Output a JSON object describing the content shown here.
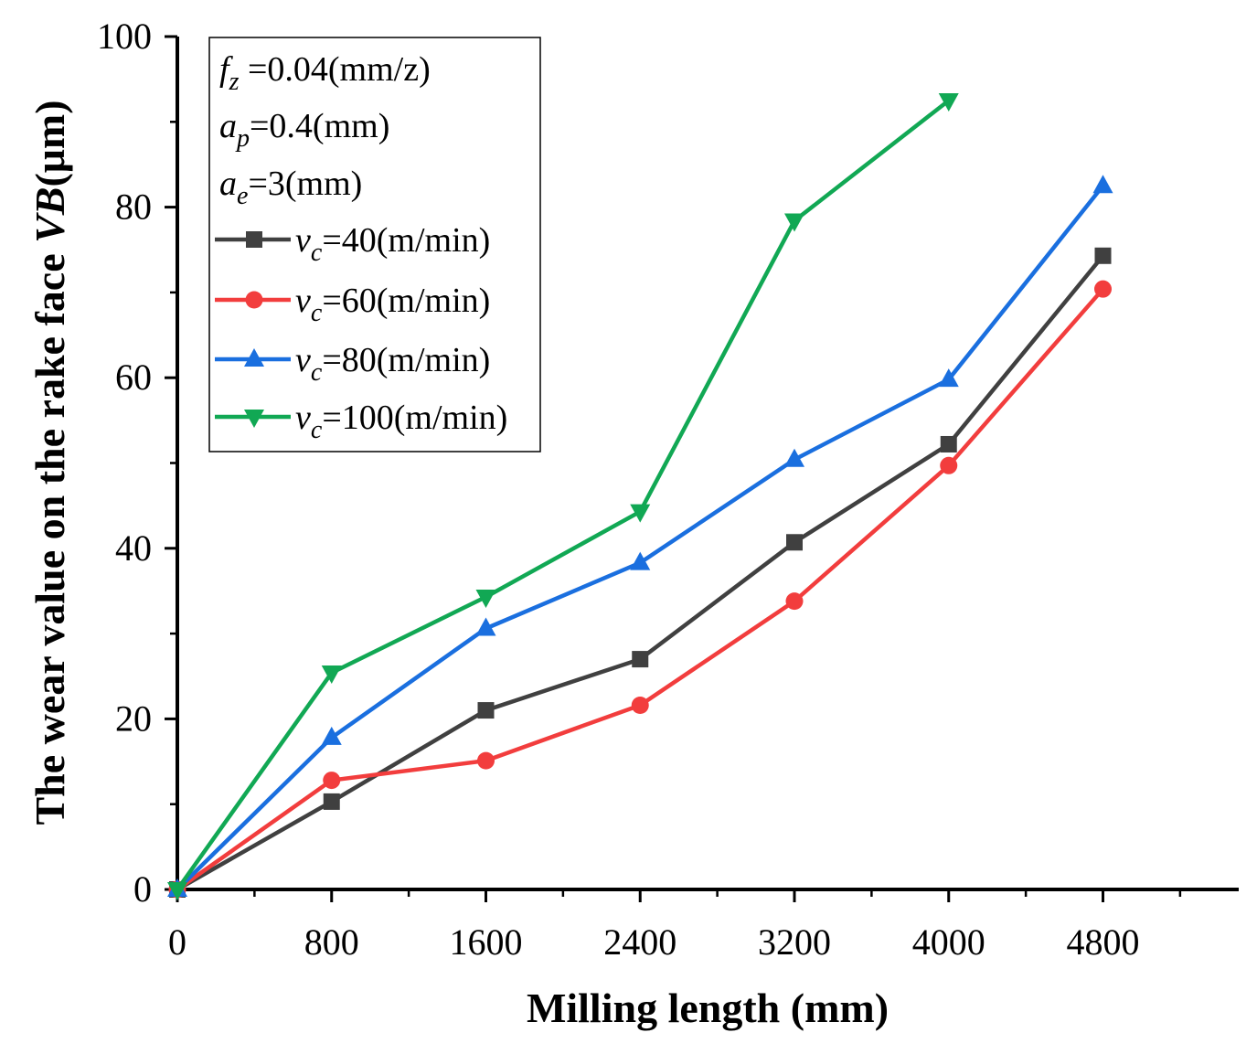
{
  "chart_data": {
    "type": "line",
    "title": "",
    "xlabel": "Milling length (mm)",
    "ylabel_prefix": "The wear value on the rake face ",
    "ylabel_var": "VB",
    "ylabel_unit": "(μm)",
    "xlim": [
      0,
      5500
    ],
    "ylim": [
      0,
      100
    ],
    "xticks": [
      0,
      800,
      1600,
      2400,
      3200,
      4000,
      4800
    ],
    "xticks_minor": [
      400,
      1200,
      2000,
      2800,
      3600,
      4400,
      5200
    ],
    "yticks": [
      0,
      20,
      40,
      60,
      80,
      100
    ],
    "yticks_minor": [
      10,
      30,
      50,
      70,
      90
    ],
    "grid": false,
    "legend_position": "top-left",
    "conditions": [
      {
        "var": "f",
        "sub": "z",
        "value": " =0.04(mm/z)"
      },
      {
        "var": "a",
        "sub": "p",
        "value": "=0.4(mm)"
      },
      {
        "var": "a",
        "sub": "e",
        "value": "=3(mm)"
      }
    ],
    "series": [
      {
        "var": "v",
        "sub": "c",
        "name": "=40(m/min)",
        "color": "#404040",
        "marker": "square",
        "x": [
          0,
          800,
          1600,
          2400,
          3200,
          4000,
          4800
        ],
        "y": [
          0,
          10.3,
          21.0,
          27.0,
          40.7,
          52.2,
          74.3
        ]
      },
      {
        "var": "v",
        "sub": "c",
        "name": "=60(m/min)",
        "color": "#f23d3d",
        "marker": "circle",
        "x": [
          0,
          800,
          1600,
          2400,
          3200,
          4000,
          4800
        ],
        "y": [
          0,
          12.8,
          15.1,
          21.6,
          33.8,
          49.7,
          70.4
        ]
      },
      {
        "var": "v",
        "sub": "c",
        "name": "=80(m/min)",
        "color": "#1a6fdf",
        "marker": "triangle-up",
        "x": [
          0,
          800,
          1600,
          2400,
          3200,
          4000,
          4800
        ],
        "y": [
          0,
          17.8,
          30.6,
          38.3,
          50.4,
          59.8,
          82.5
        ]
      },
      {
        "var": "v",
        "sub": "c",
        "name": "=100(m/min)",
        "color": "#11a854",
        "marker": "triangle-down",
        "x": [
          0,
          800,
          1600,
          2400,
          3200,
          4000
        ],
        "y": [
          0,
          25.4,
          34.3,
          44.3,
          78.4,
          92.5
        ]
      }
    ]
  }
}
